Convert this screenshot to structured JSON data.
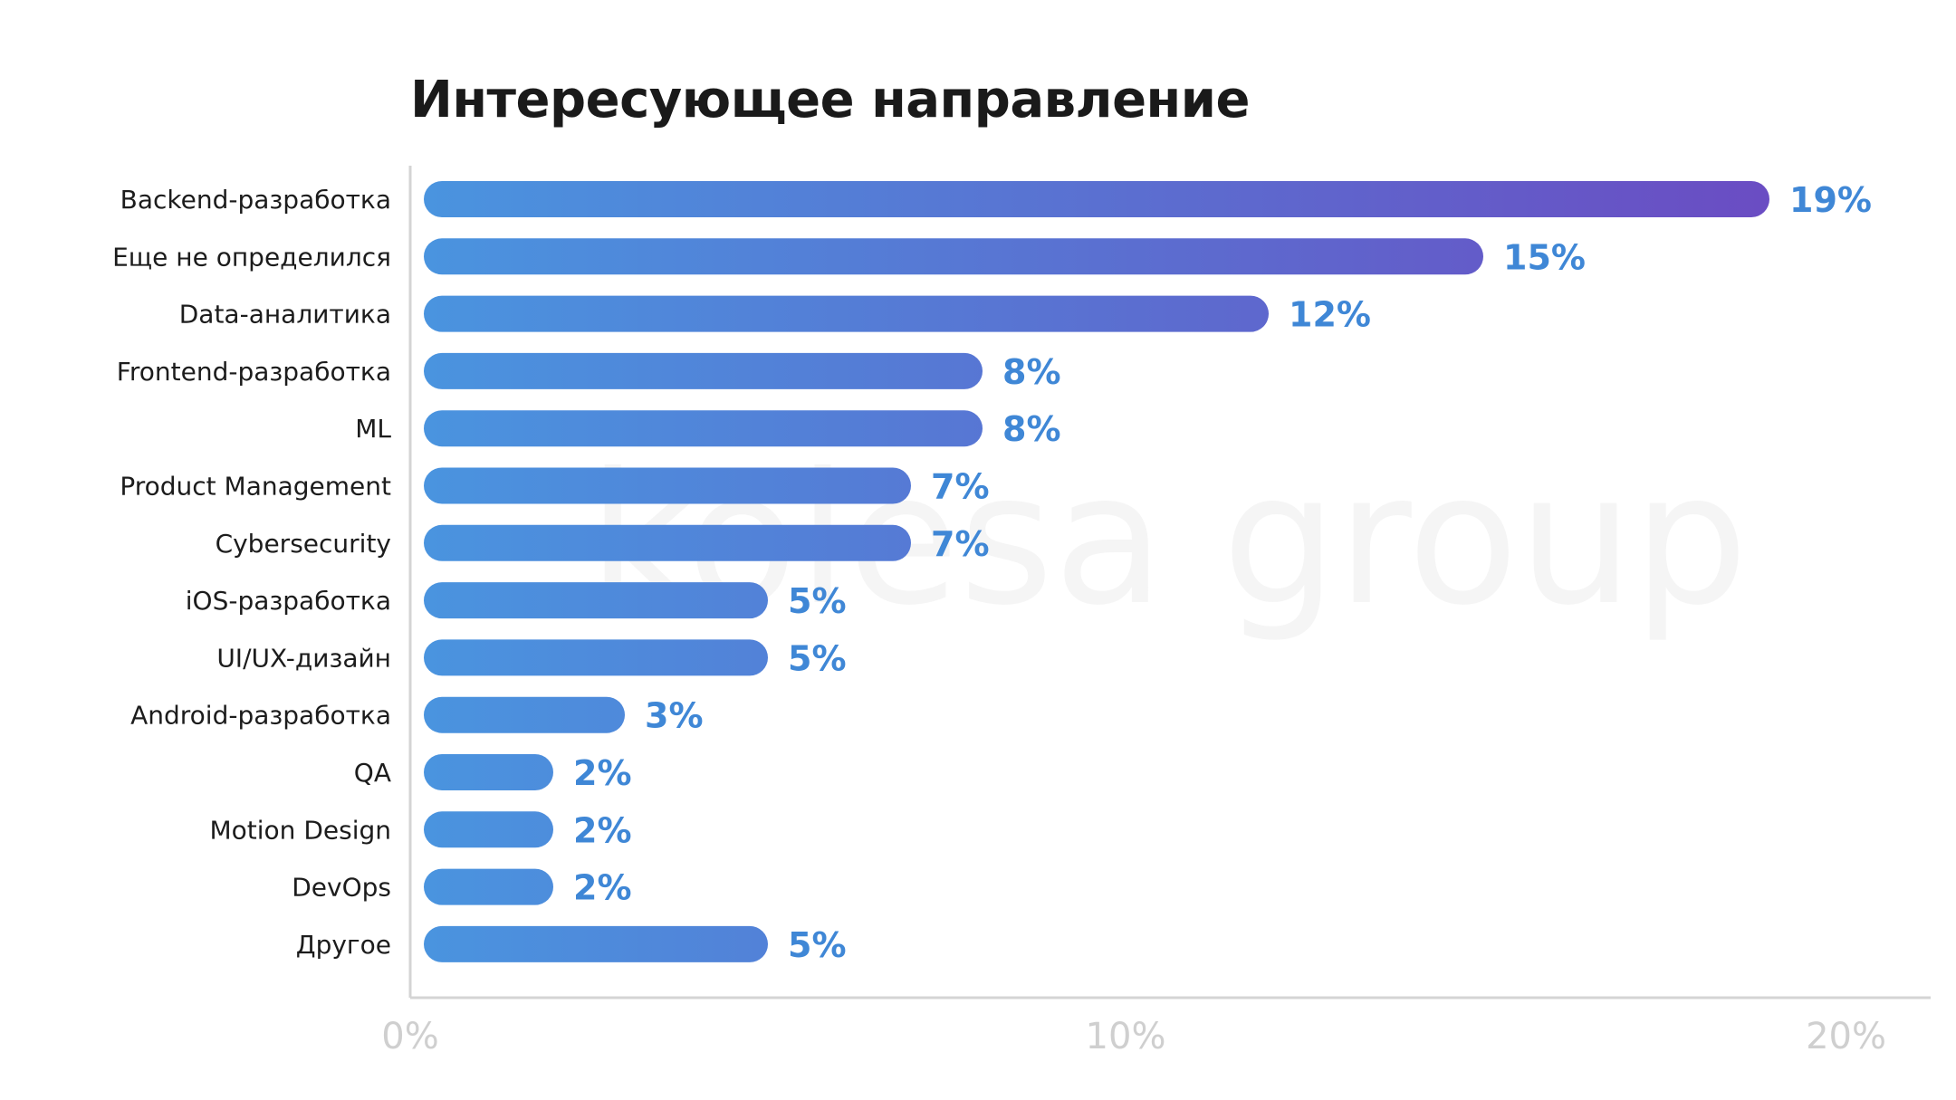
{
  "chart_data": {
    "type": "bar",
    "orientation": "horizontal",
    "title": "Интересующее направление",
    "watermark": "kolesa group",
    "categories": [
      "Backend-разработка",
      "Еще не определился",
      "Data-аналитика",
      "Frontend-разработка",
      "ML",
      "Product Management",
      "Cybersecurity",
      "iOS-разработка",
      "UI/UX-дизайн",
      "Android-разработка",
      "QA",
      "Motion Design",
      "DevOps",
      "Другое"
    ],
    "values": [
      19,
      15,
      12,
      8,
      8,
      7,
      7,
      5,
      5,
      3,
      2,
      2,
      2,
      5
    ],
    "value_labels": [
      "19%",
      "15%",
      "12%",
      "8%",
      "8%",
      "7%",
      "7%",
      "5%",
      "5%",
      "3%",
      "2%",
      "2%",
      "2%",
      "5%"
    ],
    "xlim": [
      0,
      20
    ],
    "xticks": [
      0,
      10,
      20
    ],
    "xtick_labels": [
      "0%",
      "10%",
      "20%"
    ],
    "xlabel": "",
    "ylabel": "",
    "grid": false,
    "legend": "none",
    "colors": {
      "bar_start": "#4A94DF",
      "bar_end": "#6A4DC3",
      "value_label": "#3F87D6",
      "axis": "#D4D4D4",
      "tick_label": "#CFCFCF",
      "category_label": "#1C1C1C",
      "watermark": "#EDEDED"
    }
  }
}
